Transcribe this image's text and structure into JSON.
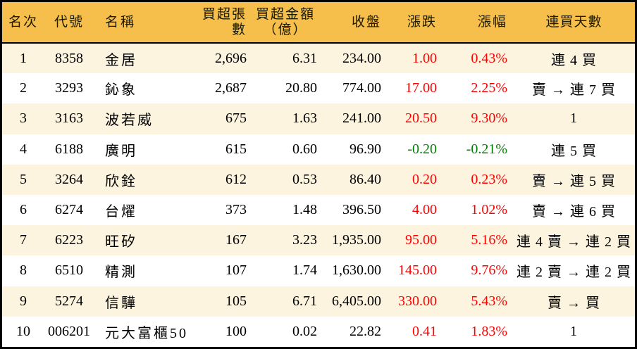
{
  "colors": {
    "header_bg": "#F6BE4B",
    "stripe_bg": "#FCF4DF",
    "up": "#FF0000",
    "down": "#008000",
    "border": "#000000"
  },
  "chart_data": {
    "type": "table",
    "columns": [
      "名次",
      "代號",
      "名稱",
      "買超張數",
      "買超金額（億）",
      "收盤",
      "漲跌",
      "漲幅",
      "連買天數"
    ],
    "header": {
      "rank": "名次",
      "code": "代號",
      "name": "名稱",
      "volume": "買超張數",
      "amount_line1": "買超金額",
      "amount_line2": "（億）",
      "close": "收盤",
      "change": "漲跌",
      "change_pct": "漲幅",
      "streak": "連買天數"
    },
    "rows": [
      {
        "rank": "1",
        "code": "8358",
        "name": "金居",
        "volume": "2,696",
        "amount": "6.31",
        "close": "234.00",
        "change": "1.00",
        "change_pct": "0.43%",
        "streak": "連 4 買",
        "trend": "up"
      },
      {
        "rank": "2",
        "code": "3293",
        "name": "鈊象",
        "volume": "2,687",
        "amount": "20.80",
        "close": "774.00",
        "change": "17.00",
        "change_pct": "2.25%",
        "streak": "賣 → 連 7 買",
        "trend": "up"
      },
      {
        "rank": "3",
        "code": "3163",
        "name": "波若威",
        "volume": "675",
        "amount": "1.63",
        "close": "241.00",
        "change": "20.50",
        "change_pct": "9.30%",
        "streak": "1",
        "trend": "up"
      },
      {
        "rank": "4",
        "code": "6188",
        "name": "廣明",
        "volume": "615",
        "amount": "0.60",
        "close": "96.90",
        "change": "-0.20",
        "change_pct": "-0.21%",
        "streak": "連 5 買",
        "trend": "down"
      },
      {
        "rank": "5",
        "code": "3264",
        "name": "欣銓",
        "volume": "612",
        "amount": "0.53",
        "close": "86.40",
        "change": "0.20",
        "change_pct": "0.23%",
        "streak": "賣 → 連 5 買",
        "trend": "up"
      },
      {
        "rank": "6",
        "code": "6274",
        "name": "台燿",
        "volume": "373",
        "amount": "1.48",
        "close": "396.50",
        "change": "4.00",
        "change_pct": "1.02%",
        "streak": "賣 → 連 6 買",
        "trend": "up"
      },
      {
        "rank": "7",
        "code": "6223",
        "name": "旺矽",
        "volume": "167",
        "amount": "3.23",
        "close": "1,935.00",
        "change": "95.00",
        "change_pct": "5.16%",
        "streak": "連 4 賣 → 連 2 買",
        "trend": "up"
      },
      {
        "rank": "8",
        "code": "6510",
        "name": "精測",
        "volume": "107",
        "amount": "1.74",
        "close": "1,630.00",
        "change": "145.00",
        "change_pct": "9.76%",
        "streak": "連 2 賣 → 連 2 買",
        "trend": "up"
      },
      {
        "rank": "9",
        "code": "5274",
        "name": "信驊",
        "volume": "105",
        "amount": "6.71",
        "close": "6,405.00",
        "change": "330.00",
        "change_pct": "5.43%",
        "streak": "賣 → 買",
        "trend": "up"
      },
      {
        "rank": "10",
        "code": "006201",
        "name": "元大富櫃50",
        "volume": "100",
        "amount": "0.02",
        "close": "22.82",
        "change": "0.41",
        "change_pct": "1.83%",
        "streak": "1",
        "trend": "up"
      }
    ]
  }
}
